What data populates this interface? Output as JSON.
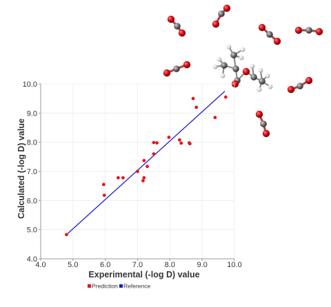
{
  "chart_data": {
    "type": "scatter",
    "xlabel": "Experimental (-log D) value",
    "ylabel": "Calculated (-log D) value",
    "xlim": [
      4.0,
      10.0
    ],
    "ylim": [
      4.0,
      10.0
    ],
    "x_ticks": [
      "4.0",
      "5.0",
      "6.0",
      "7.0",
      "8.0",
      "9.0",
      "10.0"
    ],
    "y_ticks": [
      "4.0",
      "5.0",
      "6.0",
      "7.0",
      "8.0",
      "9.0",
      "10.0"
    ],
    "grid": true,
    "legend_position": "bottom-left",
    "series": [
      {
        "name": "Prediction",
        "color": "#e8141c",
        "points": [
          [
            4.8,
            4.83
          ],
          [
            5.95,
            6.55
          ],
          [
            5.97,
            6.18
          ],
          [
            6.4,
            6.78
          ],
          [
            6.55,
            6.78
          ],
          [
            7.0,
            7.0
          ],
          [
            7.17,
            6.68
          ],
          [
            7.2,
            6.78
          ],
          [
            7.2,
            7.37
          ],
          [
            7.3,
            7.17
          ],
          [
            7.5,
            7.6
          ],
          [
            7.5,
            7.99
          ],
          [
            7.6,
            7.98
          ],
          [
            7.97,
            8.17
          ],
          [
            8.3,
            8.08
          ],
          [
            8.35,
            7.97
          ],
          [
            8.6,
            7.98
          ],
          [
            8.62,
            7.95
          ],
          [
            8.72,
            9.5
          ],
          [
            8.82,
            9.2
          ],
          [
            9.4,
            8.85
          ],
          [
            9.73,
            9.55
          ]
        ]
      },
      {
        "name": "Reference",
        "color": "#1a1adc",
        "line": [
          [
            4.8,
            4.83
          ],
          [
            9.7,
            9.75
          ]
        ]
      }
    ]
  },
  "molecule_colors": {
    "oxygen": "#e0141c",
    "carbon": "#707070",
    "hydrogen": "#e6e6e6"
  }
}
